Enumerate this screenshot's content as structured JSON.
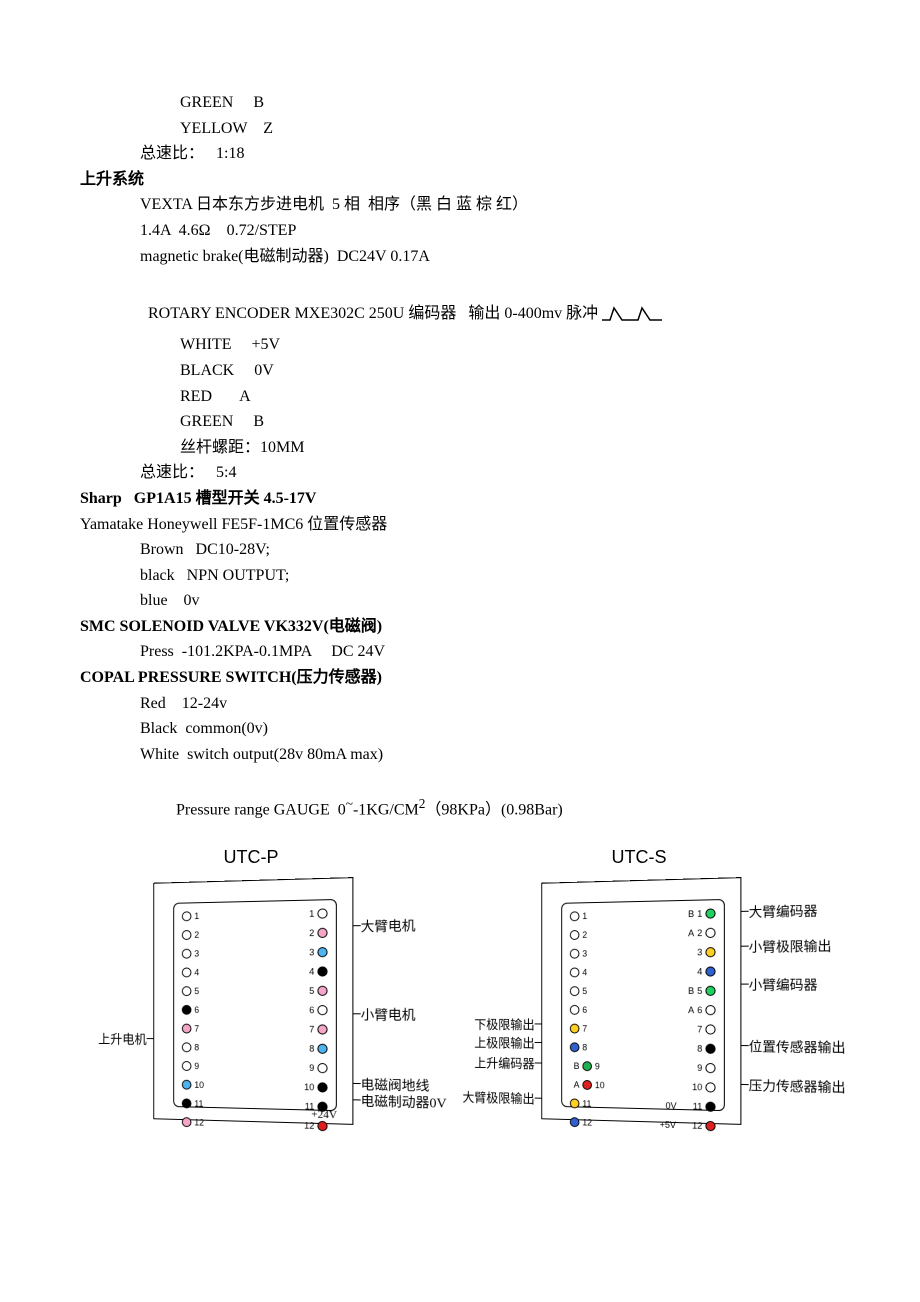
{
  "text": {
    "l1": "GREEN     B",
    "l2": "YELLOW    Z",
    "l3": "总速比：   1:18",
    "h1": "上升系统",
    "l4": "VEXTA 日本东方步进电机  5 相  相序（黑 白 蓝 棕 红）",
    "l5": "1.4A  4.6Ω    0.72/STEP",
    "l6": "magnetic brake(电磁制动器)  DC24V 0.17A",
    "l7a": "ROTARY ENCODER MXE302C 250U 编码器   输出 0-400mv 脉冲 ",
    "l8": "WHITE     +5V",
    "l9": "BLACK     0V",
    "l10": "RED       A",
    "l11": "GREEN     B",
    "l12": "丝杆螺距：10MM",
    "l13": "总速比：   5:4",
    "h2": "Sharp   GP1A15 槽型开关 4.5-17V",
    "h3": "Yamatake Honeywell FE5F-1MC6 位置传感器",
    "l14": "Brown   DC10-28V;",
    "l15": "black   NPN OUTPUT;",
    "l16": "blue    0v",
    "h4": "SMC SOLENOID VALVE VK332V(电磁阀)",
    "l17": "Press  -101.2KPA-0.1MPA     DC 24V",
    "h5": "COPAL PRESSURE SWITCH(压力传感器)",
    "l18": "Red    12-24v",
    "l19": "Black  common(0v)",
    "l20": "White  switch output(28v 80mA max)",
    "l21a": "       Pressure range GAUGE  0",
    "l21sup": "~",
    "l21b": "-1KG/CM",
    "l21sup2": "2",
    "l21c": "（98KPa）(0.98Bar)"
  },
  "diagramP": {
    "title": "UTC-P",
    "leftLabel": "上升电机",
    "rightLabels": {
      "r1": "大臂电机",
      "r2": "小臂电机",
      "r3": "电磁阀地线",
      "r4": "电磁制动器0V",
      "r5": "+24V"
    },
    "leftPins": [
      {
        "n": "1",
        "c": "#ffffff"
      },
      {
        "n": "2",
        "c": "#ffffff"
      },
      {
        "n": "3",
        "c": "#ffffff"
      },
      {
        "n": "4",
        "c": "#ffffff"
      },
      {
        "n": "5",
        "c": "#ffffff"
      },
      {
        "n": "6",
        "c": "#000000"
      },
      {
        "n": "7",
        "c": "#f5a6c8"
      },
      {
        "n": "8",
        "c": "#ffffff"
      },
      {
        "n": "9",
        "c": "#ffffff"
      },
      {
        "n": "10",
        "c": "#4fb3f0"
      },
      {
        "n": "11",
        "c": "#000000"
      },
      {
        "n": "12",
        "c": "#f5a6c8"
      }
    ],
    "rightPins": [
      {
        "n": "1",
        "c": "#ffffff"
      },
      {
        "n": "2",
        "c": "#f5a6c8"
      },
      {
        "n": "3",
        "c": "#4fb3f0"
      },
      {
        "n": "4",
        "c": "#000000"
      },
      {
        "n": "5",
        "c": "#f5a6c8"
      },
      {
        "n": "6",
        "c": "#ffffff"
      },
      {
        "n": "7",
        "c": "#f5a6c8"
      },
      {
        "n": "8",
        "c": "#4fb3f0"
      },
      {
        "n": "9",
        "c": "#ffffff"
      },
      {
        "n": "10",
        "c": "#000000"
      },
      {
        "n": "11",
        "c": "#000000"
      },
      {
        "n": "12",
        "c": "#e02020"
      }
    ]
  },
  "diagramS": {
    "title": "UTC-S",
    "leftLabels": {
      "l1": "下极限输出",
      "l2": "上极限输出",
      "l3": "上升编码器",
      "l4": "大臂极限输出"
    },
    "rightLabels": {
      "r1": "大臂编码器",
      "r2": "小臂极限输出",
      "r3": "小臂编码器",
      "r4": "位置传感器输出",
      "r5": "压力传感器输出"
    },
    "rightExtra": {
      "e11": "0V",
      "e12": "+5V"
    },
    "leftPins": [
      {
        "n": "1",
        "c": "#ffffff"
      },
      {
        "n": "2",
        "c": "#ffffff"
      },
      {
        "n": "3",
        "c": "#ffffff"
      },
      {
        "n": "4",
        "c": "#ffffff"
      },
      {
        "n": "5",
        "c": "#ffffff"
      },
      {
        "n": "6",
        "c": "#ffffff"
      },
      {
        "n": "7",
        "c": "#ffd020"
      },
      {
        "n": "8",
        "c": "#3060d0"
      },
      {
        "n": "9",
        "c": "#20b050",
        "pre": "B"
      },
      {
        "n": "10",
        "c": "#e02020",
        "pre": "A"
      },
      {
        "n": "11",
        "c": "#ffd020"
      },
      {
        "n": "12",
        "c": "#3060d0"
      }
    ],
    "rightPins": [
      {
        "n": "1",
        "c": "#20d060",
        "pre": "B"
      },
      {
        "n": "2",
        "c": "#ffffff",
        "pre": "A"
      },
      {
        "n": "3",
        "c": "#ffd020"
      },
      {
        "n": "4",
        "c": "#3060d0"
      },
      {
        "n": "5",
        "c": "#20d060",
        "pre": "B"
      },
      {
        "n": "6",
        "c": "#ffffff",
        "pre": "A"
      },
      {
        "n": "7",
        "c": "#ffffff"
      },
      {
        "n": "8",
        "c": "#000000"
      },
      {
        "n": "9",
        "c": "#ffffff"
      },
      {
        "n": "10",
        "c": "#ffffff"
      },
      {
        "n": "11",
        "c": "#000000"
      },
      {
        "n": "12",
        "c": "#e02020"
      }
    ]
  }
}
